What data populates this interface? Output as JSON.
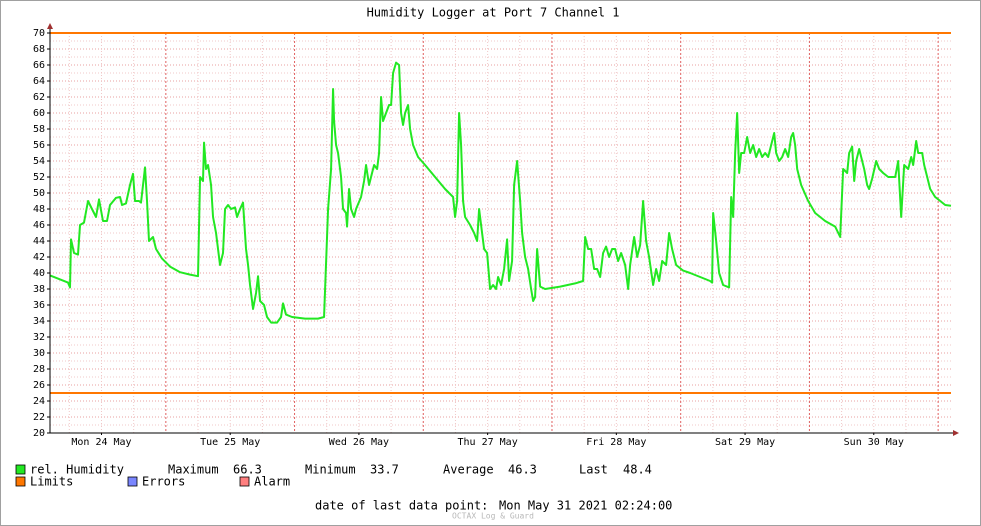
{
  "chart_data": {
    "type": "line",
    "title": "Humidity Logger at Port 7 Channel 1",
    "x": [
      2.4,
      5.76,
      6.13,
      6.32,
      6.88,
      7.62,
      8.0,
      8.74,
      9.49,
      10.23,
      10.98,
      11.54,
      12.28,
      13.03,
      13.59,
      14.71,
      15.46,
      15.83,
      16.57,
      17.32,
      17.88,
      18.25,
      19.0,
      19.37,
      20.12,
      20.49,
      20.86,
      21.61,
      22.17,
      23.29,
      24.78,
      26.65,
      28.51,
      30.0,
      30.38,
      30.93,
      31.12,
      31.49,
      31.87,
      32.43,
      32.8,
      33.36,
      34.1,
      34.66,
      35.04,
      35.6,
      36.16,
      36.9,
      37.28,
      37.84,
      38.39,
      38.95,
      39.33,
      39.7,
      40.26,
      40.82,
      41.19,
      41.57,
      42.31,
      42.87,
      43.62,
      44.74,
      45.48,
      45.85,
      46.41,
      47.53,
      49.96,
      52.38,
      53.5,
      54.25,
      54.81,
      55.18,
      55.37,
      55.74,
      56.11,
      56.67,
      57.04,
      57.6,
      57.79,
      58.16,
      58.54,
      59.1,
      59.47,
      60.4,
      60.96,
      61.33,
      61.89,
      62.45,
      62.83,
      63.39,
      63.76,
      64.13,
      64.5,
      65.06,
      65.62,
      66.0,
      66.37,
      66.93,
      67.49,
      67.86,
      68.23,
      68.61,
      69.17,
      69.54,
      70.1,
      71.03,
      72.34,
      74.2,
      76.07,
      77.56,
      77.93,
      78.31,
      78.68,
      79.05,
      79.42,
      79.8,
      80.73,
      81.48,
      82.04,
      82.41,
      82.78,
      83.34,
      83.9,
      84.46,
      85.02,
      85.58,
      85.95,
      86.51,
      87.07,
      87.63,
      88.0,
      88.56,
      88.94,
      89.5,
      90.06,
      90.43,
      90.99,
      91.55,
      92.11,
      92.48,
      92.85,
      93.23,
      93.79,
      94.72,
      97.52,
      100.31,
      101.8,
      102.18,
      102.74,
      103.3,
      103.86,
      104.42,
      104.98,
      105.53,
      106.09,
      106.65,
      107.21,
      107.77,
      108.33,
      108.89,
      109.64,
      110.2,
      110.57,
      111.32,
      111.88,
      112.44,
      112.99,
      113.55,
      114.11,
      114.86,
      115.42,
      115.98,
      116.54,
      117.28,
      117.84,
      118.4,
      119.15,
      120.45,
      121.76,
      123.63,
      125.49,
      125.86,
      126.05,
      126.61,
      127.17,
      127.91,
      129.03,
      129.41,
      129.78,
      130.15,
      130.53,
      130.9,
      131.27,
      131.83,
      132.39,
      132.95,
      133.51,
      134.07,
      134.63,
      135.19,
      135.75,
      136.31,
      136.87,
      137.43,
      137.8,
      138.36,
      138.92,
      139.48,
      140.04,
      140.6,
      140.97,
      141.34,
      141.72,
      142.46,
      143.77,
      145.07,
      146.94,
      148.8,
      149.74,
      150.29,
      151.04,
      151.41,
      151.97,
      152.35,
      152.72,
      153.28,
      153.84,
      154.21,
      154.77,
      155.14,
      155.7,
      156.45,
      157.01,
      157.75,
      158.69,
      160.0,
      160.55,
      161.11,
      161.67,
      162.42,
      162.98,
      163.35,
      163.91,
      164.28,
      165.03,
      165.4,
      165.96,
      166.52,
      167.45,
      168.39,
      169.32,
      170.4
    ],
    "series": [
      {
        "name": "rel. Humidity",
        "color": "#22e822",
        "values": [
          39.7,
          38.8,
          38.2,
          44.2,
          42.5,
          42.3,
          46,
          46.3,
          49,
          48,
          47,
          49.2,
          46.5,
          46.5,
          48.5,
          49.4,
          49.5,
          48.5,
          48.7,
          51,
          52.4,
          49,
          49,
          48.8,
          53.2,
          49,
          44,
          44.5,
          43,
          41.8,
          40.8,
          40.1,
          39.8,
          39.6,
          52,
          51.5,
          56.3,
          53,
          53.5,
          51,
          47,
          45,
          41,
          42.5,
          48,
          48.5,
          48,
          48.2,
          47,
          48,
          48.8,
          43,
          41,
          38.5,
          35.5,
          37.5,
          39.6,
          36.5,
          36,
          34.5,
          33.8,
          33.8,
          34.5,
          36.2,
          34.8,
          34.5,
          34.3,
          34.3,
          34.5,
          48,
          53,
          63,
          59,
          56,
          55,
          52,
          48,
          47.5,
          45.8,
          50.5,
          48,
          47,
          48,
          49.5,
          51.5,
          53.5,
          51,
          52.5,
          53.5,
          53,
          55,
          62,
          59,
          60,
          61,
          61,
          65,
          66.3,
          66,
          60,
          58.5,
          60,
          61,
          58,
          56,
          54.5,
          53.5,
          52,
          50.5,
          49.5,
          47,
          49,
          60,
          56,
          49,
          47,
          46,
          45,
          44,
          48,
          46,
          43,
          42.5,
          38,
          38.5,
          38,
          39.5,
          38.5,
          40.5,
          44.2,
          39,
          41.5,
          51,
          54,
          49,
          45,
          42,
          40.5,
          38,
          36.5,
          37,
          43,
          38.3,
          38,
          38.3,
          38.7,
          39,
          44.5,
          43,
          43,
          40.5,
          40.5,
          39.5,
          42.5,
          43.3,
          42,
          43,
          43,
          41.5,
          42.5,
          41,
          38,
          41,
          44.5,
          42,
          43.5,
          49,
          44,
          42,
          38.5,
          40.5,
          39,
          41.5,
          41,
          45,
          43,
          41,
          40.3,
          40,
          39.5,
          39,
          38.8,
          47.5,
          44,
          40,
          38.5,
          38.2,
          49.5,
          47,
          55,
          60,
          52.5,
          55,
          55,
          57,
          55,
          56,
          54.5,
          55.5,
          54.5,
          55,
          54.5,
          56,
          57.5,
          55,
          54,
          54.5,
          55.5,
          54.5,
          57,
          57.5,
          56,
          53,
          51,
          49,
          47.5,
          46.5,
          45.8,
          44.5,
          53,
          52.5,
          55,
          55.8,
          51.5,
          54,
          55.5,
          54,
          53,
          51,
          50.5,
          51.8,
          54,
          53,
          52.5,
          52,
          52,
          54,
          47,
          53.5,
          53,
          54.5,
          53.5,
          56.5,
          55,
          55,
          53.5,
          52,
          50.5,
          49.5,
          49,
          48.5,
          48.4
        ]
      }
    ],
    "limits": {
      "name": "Limits",
      "color": "#ff7700",
      "values": [
        70,
        25
      ]
    },
    "legend_extra": [
      {
        "name": "Errors",
        "color": "#7a86ff"
      },
      {
        "name": "Alarm",
        "color": "#ff7f7f"
      }
    ],
    "stats": [
      {
        "label": "Maximum",
        "value": 66.3
      },
      {
        "label": "Minimum",
        "value": 33.7
      },
      {
        "label": "Average",
        "value": 46.3
      },
      {
        "label": "Last",
        "value": 48.4
      }
    ],
    "xlim": [
      2.4,
      170.4
    ],
    "xticks": [
      {
        "value": 12,
        "label": "Mon 24 May"
      },
      {
        "value": 36,
        "label": "Tue 25 May"
      },
      {
        "value": 60,
        "label": "Wed 26 May"
      },
      {
        "value": 84,
        "label": "Thu 27 May"
      },
      {
        "value": 108,
        "label": "Fri 28 May"
      },
      {
        "value": 132,
        "label": "Sat 29 May"
      },
      {
        "value": 156,
        "label": "Sun 30 May"
      }
    ],
    "ylim": [
      20,
      70
    ],
    "yticks": [
      20,
      22,
      24,
      26,
      28,
      30,
      32,
      34,
      36,
      38,
      40,
      42,
      44,
      46,
      48,
      50,
      52,
      54,
      56,
      58,
      60,
      62,
      64,
      66,
      68,
      70
    ],
    "grid": true,
    "footer": {
      "label": "date of last data point:",
      "value": "Mon May 31 2021 02:24:00"
    },
    "watermark": "OCTAX Log & Guard"
  }
}
